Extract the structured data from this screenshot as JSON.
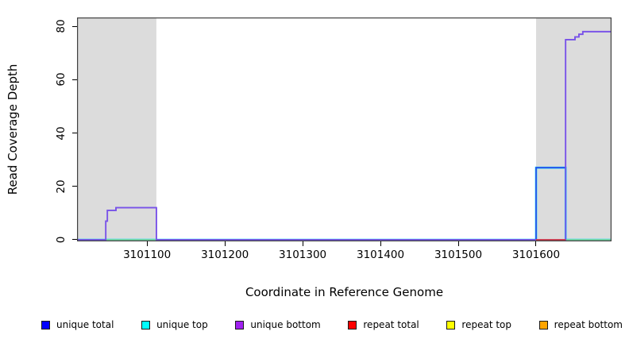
{
  "chart_data": {
    "type": "line",
    "title": "",
    "xlabel": "Coordinate in Reference Genome",
    "ylabel": "Read Coverage Depth",
    "xlim": [
      3101010,
      3101697
    ],
    "ylim": [
      -0.6,
      83.3
    ],
    "grid": false,
    "xticks": [
      {
        "v": 3101100,
        "label": "3101100"
      },
      {
        "v": 3101200,
        "label": "3101200"
      },
      {
        "v": 3101300,
        "label": "3101300"
      },
      {
        "v": 3101400,
        "label": "3101400"
      },
      {
        "v": 3101500,
        "label": "3101500"
      },
      {
        "v": 3101600,
        "label": "3101600"
      }
    ],
    "yticks": [
      {
        "v": 0,
        "label": "0"
      },
      {
        "v": 20,
        "label": "20"
      },
      {
        "v": 40,
        "label": "40"
      },
      {
        "v": 60,
        "label": "60"
      },
      {
        "v": 80,
        "label": "80"
      }
    ],
    "bands": [
      {
        "name": "left-shaded-region",
        "x0": 3101010,
        "x1": 3101112,
        "color": "#dcdcdc"
      },
      {
        "name": "right-shaded-region",
        "x0": 3101600,
        "x1": 3101697,
        "color": "#dcdcdc"
      }
    ],
    "series": [
      {
        "name": "repeat top",
        "color": "#ffff00",
        "width": 1.6,
        "points": [
          [
            3101010,
            0
          ],
          [
            3101697,
            0
          ]
        ]
      },
      {
        "name": "repeat bottom",
        "color": "#ffa500",
        "width": 1.6,
        "points": [
          [
            3101010,
            0
          ],
          [
            3101697,
            0
          ]
        ]
      },
      {
        "name": "unique top",
        "color": "#00d9ff",
        "width": 2.6,
        "points": [
          [
            3101010,
            0
          ],
          [
            3101600,
            0
          ],
          [
            3101600,
            27
          ],
          [
            3101638,
            27
          ],
          [
            3101638,
            0
          ],
          [
            3101697,
            0
          ]
        ]
      },
      {
        "name": "baseline-green",
        "color": "#90d890",
        "width": 1.6,
        "points": [
          [
            3101010,
            0
          ],
          [
            3101697,
            0
          ]
        ]
      },
      {
        "name": "unique total",
        "color": "#3340e8",
        "width": 1.6,
        "points": [
          [
            3101010,
            0
          ],
          [
            3101047,
            0
          ],
          [
            3101047,
            7
          ],
          [
            3101049,
            7
          ],
          [
            3101049,
            11
          ],
          [
            3101060,
            11
          ],
          [
            3101060,
            12
          ],
          [
            3101112,
            12
          ],
          [
            3101112,
            0
          ],
          [
            3101600,
            0
          ],
          [
            3101600,
            27
          ],
          [
            3101638,
            27
          ],
          [
            3101638,
            75
          ],
          [
            3101650,
            75
          ],
          [
            3101650,
            76
          ],
          [
            3101655,
            76
          ],
          [
            3101655,
            77
          ],
          [
            3101660,
            77
          ],
          [
            3101660,
            78
          ],
          [
            3101697,
            78
          ]
        ]
      },
      {
        "name": "unique bottom",
        "color": "#7b52e8",
        "width": 1.8,
        "points": [
          [
            3101010,
            0
          ],
          [
            3101047,
            0
          ],
          [
            3101047,
            7
          ],
          [
            3101049,
            7
          ],
          [
            3101049,
            11
          ],
          [
            3101060,
            11
          ],
          [
            3101060,
            12
          ],
          [
            3101112,
            12
          ],
          [
            3101112,
            0
          ],
          [
            3101638,
            0
          ],
          [
            3101638,
            75
          ],
          [
            3101650,
            75
          ],
          [
            3101650,
            76
          ],
          [
            3101655,
            76
          ],
          [
            3101655,
            77
          ],
          [
            3101660,
            77
          ],
          [
            3101660,
            78
          ],
          [
            3101697,
            78
          ]
        ]
      },
      {
        "name": "repeat total",
        "color": "#e23333",
        "width": 1.6,
        "points": [
          [
            3101600,
            0
          ],
          [
            3101638,
            0
          ]
        ]
      }
    ],
    "legend": [
      {
        "label": "unique total",
        "color": "#0000ff"
      },
      {
        "label": "unique top",
        "color": "#00ffff"
      },
      {
        "label": "unique bottom",
        "color": "#a020f0"
      },
      {
        "label": "repeat total",
        "color": "#ff0000"
      },
      {
        "label": "repeat top",
        "color": "#ffff00"
      },
      {
        "label": "repeat bottom",
        "color": "#ffa500"
      }
    ],
    "frame_color": "#404040",
    "legend_position": "bottom"
  }
}
